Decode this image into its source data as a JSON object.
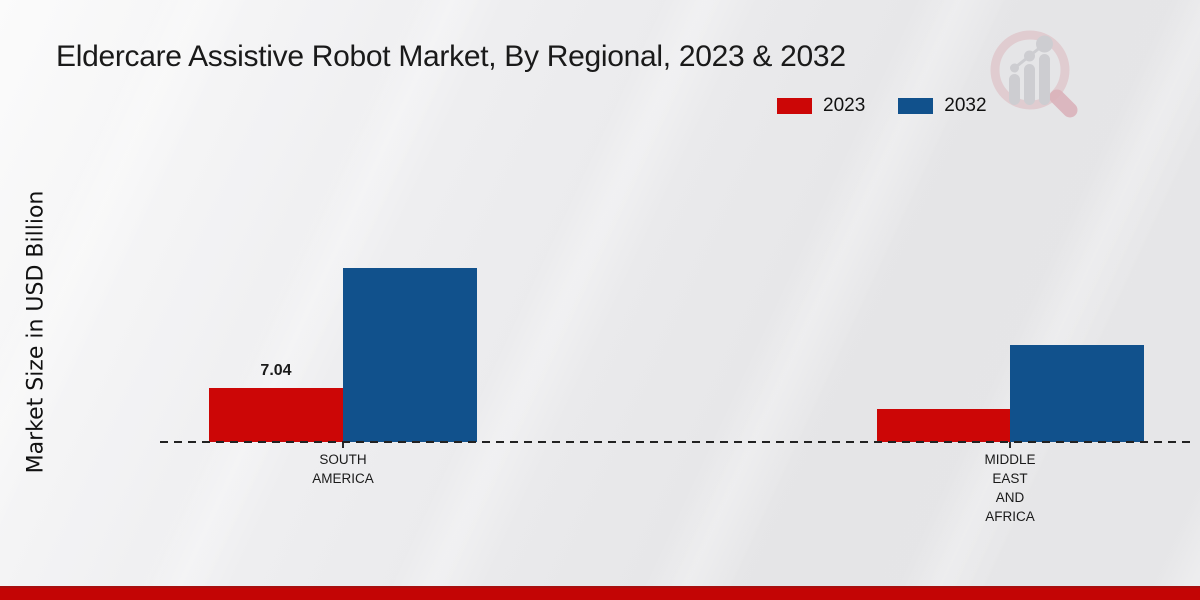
{
  "chart_data": {
    "type": "bar",
    "title": "Eldercare Assistive Robot Market, By Regional, 2023 & 2032",
    "xlabel": "",
    "ylabel": "Market Size in USD Billion",
    "categories": [
      "SOUTH\nAMERICA",
      "MIDDLE\nEAST\nAND\nAFRICA"
    ],
    "series": [
      {
        "name": "2023",
        "color": "#cc0606",
        "values": [
          7.04,
          4.3
        ],
        "data_labels": [
          "7.04",
          ""
        ]
      },
      {
        "name": "2032",
        "color": "#11518c",
        "values": [
          22.7,
          12.65
        ],
        "data_labels": [
          "",
          ""
        ]
      }
    ],
    "ylim": [
      0,
      25
    ],
    "grid": false,
    "legend_position": "top-right",
    "baseline_style": "dashed",
    "accent_footer_color": "#c30505"
  }
}
